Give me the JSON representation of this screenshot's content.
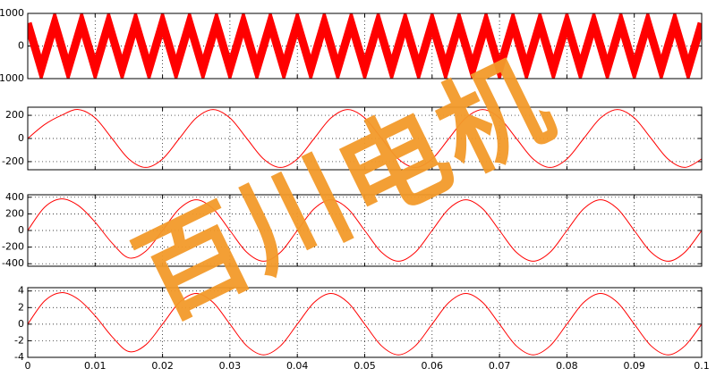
{
  "chart_data": [
    {
      "type": "line",
      "smooth": false,
      "xtick_labels": false,
      "xlim": [
        0,
        0.1
      ],
      "xticks": [
        0,
        0.01,
        0.02,
        0.03,
        0.04,
        0.05,
        0.06,
        0.07,
        0.08,
        0.09,
        0.1
      ],
      "ylim": [
        -1000,
        1000
      ],
      "yticks": [
        -1000,
        0,
        1000
      ],
      "grid": true,
      "series": [
        {
          "color": "#ff0000",
          "x": [
            0,
            0.002,
            0.004,
            0.006,
            0.008,
            0.01,
            0.012,
            0.014,
            0.016,
            0.018,
            0.02,
            0.022,
            0.024,
            0.026,
            0.028,
            0.03,
            0.032,
            0.034,
            0.036,
            0.038,
            0.04,
            0.042,
            0.044,
            0.046,
            0.048,
            0.05,
            0.052,
            0.054,
            0.056,
            0.058,
            0.06,
            0.062,
            0.064,
            0.066,
            0.068,
            0.07,
            0.072,
            0.074,
            0.076,
            0.078,
            0.08,
            0.082,
            0.084,
            0.086,
            0.088,
            0.09,
            0.092,
            0.094,
            0.096,
            0.098,
            0.1
          ],
          "values": [
            700,
            -700,
            700,
            -700,
            700,
            -700,
            700,
            -700,
            700,
            -700,
            700,
            -700,
            700,
            -700,
            700,
            -700,
            700,
            -700,
            700,
            -700,
            700,
            -700,
            700,
            -700,
            700,
            -700,
            700,
            -700,
            700,
            -700,
            700,
            -700,
            700,
            -700,
            700,
            -700,
            700,
            -700,
            700,
            -700,
            700,
            -700,
            700,
            -700,
            700,
            -700,
            700,
            -700,
            700,
            -700,
            700
          ]
        }
      ]
    },
    {
      "type": "line",
      "smooth": true,
      "xtick_labels": false,
      "xlim": [
        0,
        0.1
      ],
      "xticks": [
        0,
        0.01,
        0.02,
        0.03,
        0.04,
        0.05,
        0.06,
        0.07,
        0.08,
        0.09,
        0.1
      ],
      "ylim": [
        -270,
        270
      ],
      "yticks": [
        -200,
        0,
        200
      ],
      "grid": true,
      "series": [
        {
          "color": "#ff0000",
          "x": [
            0,
            0.0025,
            0.005,
            0.0075,
            0.01,
            0.0125,
            0.015,
            0.0175,
            0.02,
            0.0225,
            0.025,
            0.0275,
            0.03,
            0.0325,
            0.035,
            0.0375,
            0.04,
            0.0425,
            0.045,
            0.0475,
            0.05,
            0.0525,
            0.055,
            0.0575,
            0.06,
            0.0625,
            0.065,
            0.0675,
            0.07,
            0.0725,
            0.075,
            0.0775,
            0.08,
            0.0825,
            0.085,
            0.0875,
            0.09,
            0.0925,
            0.095,
            0.0975,
            0.1
          ],
          "values": [
            0,
            120,
            200,
            250,
            177,
            0,
            -177,
            -250,
            -177,
            0,
            177,
            250,
            177,
            0,
            -177,
            -250,
            -177,
            0,
            177,
            250,
            177,
            0,
            -177,
            -250,
            -177,
            0,
            177,
            250,
            177,
            0,
            -177,
            -250,
            -177,
            0,
            177,
            250,
            177,
            0,
            -177,
            -250,
            -177
          ]
        }
      ]
    },
    {
      "type": "line",
      "smooth": true,
      "xtick_labels": false,
      "xlim": [
        0,
        0.1
      ],
      "xticks": [
        0,
        0.01,
        0.02,
        0.03,
        0.04,
        0.05,
        0.06,
        0.07,
        0.08,
        0.09,
        0.1
      ],
      "ylim": [
        -430,
        430
      ],
      "yticks": [
        -400,
        -200,
        0,
        200,
        400
      ],
      "grid": true,
      "series": [
        {
          "color": "#ff0000",
          "x": [
            0,
            0.0025,
            0.005,
            0.0075,
            0.01,
            0.0125,
            0.015,
            0.0175,
            0.02,
            0.0225,
            0.025,
            0.0275,
            0.03,
            0.0325,
            0.035,
            0.0375,
            0.04,
            0.0425,
            0.045,
            0.0475,
            0.05,
            0.0525,
            0.055,
            0.0575,
            0.06,
            0.0625,
            0.065,
            0.0675,
            0.07,
            0.0725,
            0.075,
            0.0775,
            0.08,
            0.0825,
            0.085,
            0.0875,
            0.09,
            0.0925,
            0.095,
            0.0975,
            0.1
          ],
          "values": [
            0,
            280,
            380,
            300,
            100,
            -150,
            -330,
            -250,
            0,
            262,
            370,
            262,
            0,
            -262,
            -370,
            -262,
            0,
            262,
            370,
            262,
            0,
            -262,
            -370,
            -262,
            0,
            262,
            370,
            262,
            0,
            -262,
            -370,
            -262,
            0,
            262,
            370,
            262,
            0,
            -262,
            -370,
            -262,
            0
          ]
        }
      ]
    },
    {
      "type": "line",
      "smooth": true,
      "xtick_labels": true,
      "xlim": [
        0,
        0.1
      ],
      "xticks": [
        0,
        0.01,
        0.02,
        0.03,
        0.04,
        0.05,
        0.06,
        0.07,
        0.08,
        0.09,
        0.1
      ],
      "ylim": [
        -4,
        4.4
      ],
      "yticks": [
        -4,
        -2,
        0,
        2,
        4
      ],
      "grid": true,
      "series": [
        {
          "color": "#ff0000",
          "x": [
            0,
            0.0025,
            0.005,
            0.0075,
            0.01,
            0.0125,
            0.015,
            0.0175,
            0.02,
            0.0225,
            0.025,
            0.0275,
            0.03,
            0.0325,
            0.035,
            0.0375,
            0.04,
            0.0425,
            0.045,
            0.0475,
            0.05,
            0.0525,
            0.055,
            0.0575,
            0.06,
            0.0625,
            0.065,
            0.0675,
            0.07,
            0.0725,
            0.075,
            0.0775,
            0.08,
            0.0825,
            0.085,
            0.0875,
            0.09,
            0.0925,
            0.095,
            0.0975,
            0.1
          ],
          "values": [
            0,
            2.8,
            3.8,
            3,
            1,
            -1.5,
            -3.3,
            -2.5,
            0,
            2.62,
            3.7,
            2.62,
            0,
            -2.62,
            -3.7,
            -2.62,
            0,
            2.62,
            3.7,
            2.62,
            0,
            -2.62,
            -3.7,
            -2.62,
            0,
            2.62,
            3.7,
            2.62,
            0,
            -2.62,
            -3.7,
            -2.62,
            0,
            2.62,
            3.7,
            2.62,
            0,
            -2.62,
            -3.7,
            -2.62,
            0
          ]
        }
      ]
    }
  ],
  "watermark": "百川电机"
}
